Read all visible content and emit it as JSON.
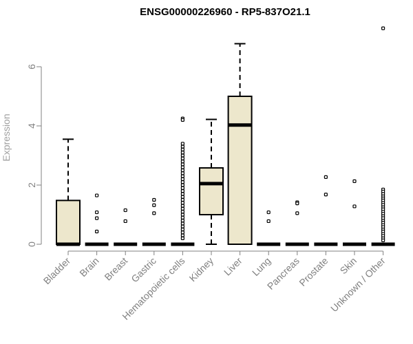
{
  "chart_data": {
    "type": "boxplot",
    "title": "ENSG00000226960 - RP5-837O21.1",
    "xlabel": "",
    "ylabel": "Expression",
    "ylim": [
      0,
      7.4
    ],
    "yticks": [
      0,
      2,
      4,
      6
    ],
    "box_fill": "#ede7cc",
    "categories": [
      "Bladder",
      "Brain",
      "Breast",
      "Gastric",
      "Hematopoietic cells",
      "Kidney",
      "Liver",
      "Lung",
      "Pancreas",
      "Prostate",
      "Skin",
      "Unknown / Other"
    ],
    "boxes": [
      {
        "q1": 0,
        "median": 0,
        "q3": 1.48,
        "whisker_low": 0,
        "whisker_high": 3.55,
        "outliers": []
      },
      {
        "q1": 0,
        "median": 0,
        "q3": 0,
        "whisker_low": 0,
        "whisker_high": 0,
        "outliers": [
          1.65,
          1.08,
          0.88,
          0.43
        ]
      },
      {
        "q1": 0,
        "median": 0,
        "q3": 0,
        "whisker_low": 0,
        "whisker_high": 0,
        "outliers": [
          1.15,
          0.78
        ]
      },
      {
        "q1": 0,
        "median": 0,
        "q3": 0,
        "whisker_low": 0,
        "whisker_high": 0,
        "outliers": [
          1.5,
          1.32,
          1.05
        ]
      },
      {
        "q1": 0,
        "median": 0,
        "q3": 0,
        "whisker_low": 0,
        "whisker_high": 0,
        "outliers": [
          4.25,
          4.2,
          3.4,
          3.3,
          3.2,
          3.1,
          3.0,
          2.9,
          2.8,
          2.7,
          2.6,
          2.5,
          2.4,
          2.3,
          2.2,
          2.1,
          2.0,
          1.9,
          1.8,
          1.7,
          1.6,
          1.5,
          1.4,
          1.3,
          1.2,
          1.1,
          1.0,
          0.9,
          0.8,
          0.7,
          0.6,
          0.5,
          0.4,
          0.3,
          0.2
        ]
      },
      {
        "q1": 1.0,
        "median": 2.05,
        "q3": 2.58,
        "whisker_low": 0,
        "whisker_high": 4.22,
        "outliers": []
      },
      {
        "q1": 0,
        "median": 4.03,
        "q3": 5.0,
        "whisker_low": 0,
        "whisker_high": 6.78,
        "outliers": []
      },
      {
        "q1": 0,
        "median": 0,
        "q3": 0,
        "whisker_low": 0,
        "whisker_high": 0,
        "outliers": [
          1.08,
          0.78
        ]
      },
      {
        "q1": 0,
        "median": 0,
        "q3": 0,
        "whisker_low": 0,
        "whisker_high": 0,
        "outliers": [
          1.42,
          1.38,
          1.05
        ]
      },
      {
        "q1": 0,
        "median": 0,
        "q3": 0,
        "whisker_low": 0,
        "whisker_high": 0,
        "outliers": [
          2.27,
          1.68
        ]
      },
      {
        "q1": 0,
        "median": 0,
        "q3": 0,
        "whisker_low": 0,
        "whisker_high": 0,
        "outliers": [
          2.13,
          1.28
        ]
      },
      {
        "q1": 0,
        "median": 0,
        "q3": 0,
        "whisker_low": 0,
        "whisker_high": 0,
        "outliers": [
          7.3,
          1.85,
          1.78,
          1.7,
          1.62,
          1.55,
          1.48,
          1.4,
          1.33,
          1.25,
          1.18,
          1.1,
          1.03,
          0.95,
          0.88,
          0.8,
          0.73,
          0.65,
          0.58,
          0.5,
          0.43,
          0.35,
          0.28,
          0.2,
          0.13
        ]
      }
    ]
  }
}
